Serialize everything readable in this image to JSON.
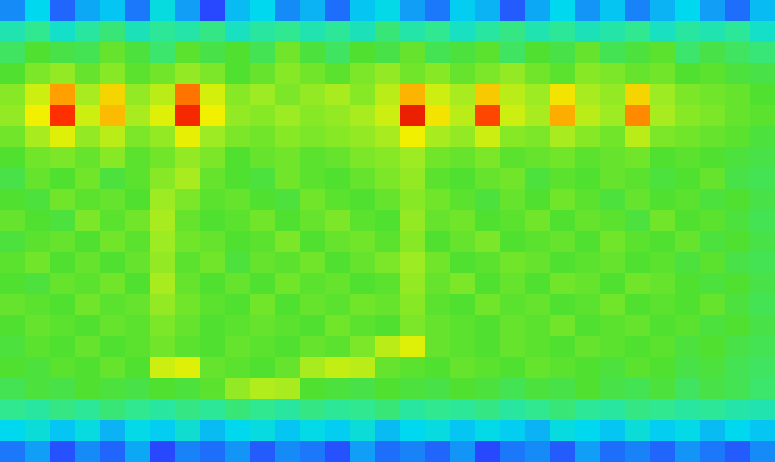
{
  "chart_data": {
    "type": "heatmap",
    "zlim": [
      0,
      100
    ],
    "tick_labels": false,
    "grid": false,
    "cells": [
      [
        22,
        30,
        18,
        25,
        28,
        20,
        32,
        24,
        15,
        27,
        30,
        22,
        26,
        19,
        28,
        31,
        24,
        20,
        29,
        26,
        17,
        25,
        30,
        23,
        28,
        21,
        26,
        30,
        24,
        19,
        27
      ],
      [
        38,
        42,
        35,
        40,
        44,
        37,
        41,
        39,
        43,
        36,
        40,
        42,
        38,
        41,
        37,
        44,
        39,
        42,
        36,
        40,
        43,
        38,
        41,
        37,
        39,
        42,
        36,
        40,
        38,
        41,
        35
      ],
      [
        46,
        50,
        48,
        47,
        52,
        49,
        45,
        51,
        48,
        50,
        47,
        53,
        49,
        46,
        50,
        48,
        52,
        47,
        49,
        51,
        46,
        50,
        48,
        52,
        47,
        49,
        51,
        45,
        48,
        46,
        44
      ],
      [
        50,
        54,
        56,
        52,
        55,
        51,
        53,
        56,
        54,
        50,
        52,
        55,
        53,
        51,
        54,
        56,
        53,
        55,
        52,
        54,
        56,
        53,
        51,
        55,
        54,
        52,
        53,
        50,
        51,
        49,
        48
      ],
      [
        55,
        62,
        78,
        58,
        70,
        56,
        60,
        82,
        63,
        55,
        57,
        54,
        56,
        58,
        55,
        60,
        75,
        62,
        58,
        72,
        60,
        57,
        68,
        58,
        56,
        70,
        57,
        54,
        53,
        52,
        50
      ],
      [
        56,
        66,
        88,
        62,
        74,
        58,
        64,
        90,
        66,
        56,
        55,
        57,
        55,
        56,
        58,
        62,
        92,
        68,
        60,
        86,
        62,
        58,
        76,
        60,
        57,
        80,
        58,
        55,
        54,
        52,
        51
      ],
      [
        53,
        58,
        64,
        56,
        60,
        54,
        56,
        65,
        57,
        54,
        53,
        55,
        54,
        55,
        56,
        58,
        66,
        58,
        56,
        62,
        55,
        54,
        58,
        55,
        53,
        60,
        54,
        53,
        52,
        51,
        49
      ],
      [
        50,
        53,
        54,
        52,
        55,
        51,
        53,
        56,
        54,
        50,
        52,
        53,
        51,
        52,
        54,
        55,
        57,
        53,
        52,
        54,
        51,
        52,
        53,
        51,
        52,
        53,
        50,
        51,
        50,
        49,
        48
      ],
      [
        48,
        52,
        50,
        53,
        49,
        51,
        55,
        58,
        52,
        50,
        49,
        53,
        51,
        50,
        52,
        54,
        56,
        51,
        50,
        52,
        53,
        49,
        51,
        50,
        52,
        51,
        49,
        50,
        52,
        48,
        47
      ],
      [
        50,
        49,
        53,
        51,
        52,
        50,
        57,
        54,
        51,
        52,
        50,
        49,
        53,
        51,
        50,
        52,
        55,
        53,
        51,
        49,
        52,
        50,
        53,
        51,
        49,
        52,
        50,
        51,
        49,
        50,
        48
      ],
      [
        52,
        50,
        49,
        54,
        51,
        53,
        58,
        52,
        50,
        51,
        53,
        50,
        52,
        54,
        51,
        50,
        56,
        52,
        53,
        50,
        51,
        53,
        50,
        52,
        51,
        49,
        53,
        50,
        51,
        49,
        47
      ],
      [
        49,
        51,
        52,
        50,
        53,
        51,
        57,
        53,
        52,
        50,
        51,
        54,
        50,
        52,
        53,
        51,
        55,
        50,
        52,
        54,
        50,
        51,
        52,
        50,
        53,
        51,
        50,
        52,
        49,
        50,
        48
      ],
      [
        51,
        53,
        50,
        52,
        50,
        52,
        56,
        51,
        53,
        49,
        52,
        51,
        53,
        50,
        52,
        54,
        57,
        53,
        50,
        51,
        53,
        52,
        50,
        51,
        52,
        50,
        51,
        49,
        51,
        48,
        47
      ],
      [
        50,
        49,
        52,
        51,
        53,
        50,
        58,
        52,
        50,
        52,
        50,
        53,
        51,
        52,
        50,
        51,
        56,
        52,
        54,
        50,
        52,
        50,
        53,
        52,
        50,
        53,
        52,
        50,
        49,
        50,
        48
      ],
      [
        52,
        51,
        50,
        53,
        51,
        52,
        56,
        53,
        51,
        50,
        53,
        50,
        52,
        51,
        53,
        52,
        55,
        51,
        50,
        53,
        51,
        52,
        50,
        51,
        53,
        50,
        51,
        50,
        52,
        49,
        47
      ],
      [
        50,
        52,
        51,
        50,
        52,
        51,
        54,
        52,
        50,
        51,
        52,
        51,
        50,
        53,
        51,
        50,
        54,
        52,
        51,
        50,
        52,
        51,
        53,
        50,
        51,
        52,
        50,
        51,
        49,
        50,
        48
      ],
      [
        49,
        51,
        50,
        52,
        50,
        51,
        53,
        51,
        50,
        52,
        51,
        50,
        52,
        51,
        54,
        60,
        64,
        52,
        51,
        50,
        52,
        51,
        50,
        52,
        51,
        50,
        51,
        49,
        50,
        48,
        47
      ],
      [
        50,
        49,
        51,
        50,
        52,
        50,
        62,
        64,
        52,
        51,
        50,
        52,
        58,
        61,
        60,
        52,
        51,
        50,
        52,
        51,
        50,
        52,
        51,
        50,
        49,
        51,
        50,
        48,
        49,
        47,
        46
      ],
      [
        47,
        49,
        48,
        50,
        49,
        48,
        50,
        49,
        51,
        56,
        59,
        58,
        50,
        49,
        48,
        50,
        49,
        48,
        50,
        49,
        47,
        49,
        48,
        50,
        48,
        47,
        49,
        46,
        48,
        47,
        45
      ],
      [
        42,
        40,
        43,
        41,
        44,
        42,
        40,
        43,
        41,
        44,
        42,
        40,
        43,
        41,
        42,
        44,
        40,
        42,
        41,
        43,
        40,
        42,
        44,
        41,
        40,
        43,
        42,
        40,
        41,
        39,
        38
      ],
      [
        30,
        33,
        28,
        32,
        26,
        31,
        29,
        34,
        27,
        30,
        32,
        28,
        31,
        29,
        33,
        27,
        30,
        32,
        28,
        31,
        29,
        26,
        32,
        30,
        28,
        33,
        29,
        31,
        27,
        30,
        28
      ],
      [
        20,
        24,
        16,
        22,
        18,
        25,
        15,
        21,
        19,
        23,
        17,
        22,
        20,
        16,
        24,
        19,
        21,
        18,
        23,
        15,
        20,
        22,
        17,
        24,
        19,
        21,
        18,
        23,
        20,
        17,
        22
      ]
    ]
  }
}
